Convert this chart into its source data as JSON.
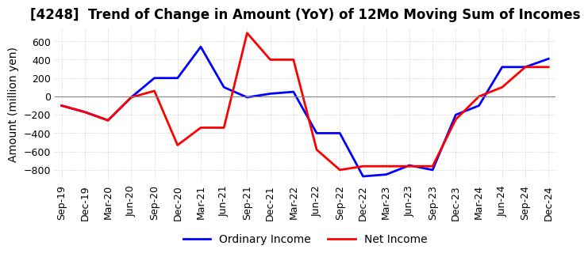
{
  "title": "[4248]  Trend of Change in Amount (YoY) of 12Mo Moving Sum of Incomes",
  "ylabel": "Amount (million yen)",
  "ylim": [
    -920,
    750
  ],
  "yticks": [
    -800,
    -600,
    -400,
    -200,
    0,
    200,
    400,
    600
  ],
  "x_labels": [
    "Sep-19",
    "Dec-19",
    "Mar-20",
    "Jun-20",
    "Sep-20",
    "Dec-20",
    "Mar-21",
    "Jun-21",
    "Sep-21",
    "Dec-21",
    "Mar-22",
    "Jun-22",
    "Sep-22",
    "Dec-22",
    "Mar-23",
    "Jun-23",
    "Sep-23",
    "Dec-23",
    "Mar-24",
    "Jun-24",
    "Sep-24",
    "Dec-24"
  ],
  "ordinary_income": [
    -100,
    -170,
    -260,
    -10,
    200,
    200,
    540,
    100,
    -10,
    30,
    50,
    -400,
    -400,
    -870,
    -850,
    -750,
    -800,
    -200,
    -100,
    320,
    320,
    410
  ],
  "net_income": [
    -100,
    -170,
    -260,
    -10,
    60,
    -530,
    -340,
    -340,
    690,
    400,
    400,
    -580,
    -800,
    -760,
    -760,
    -760,
    -760,
    -250,
    0,
    100,
    320,
    320
  ],
  "ordinary_income_color": "#0000ff",
  "net_income_color": "#ff0000",
  "line_width": 2.0,
  "background_color": "#ffffff",
  "grid_color": "#bbbbbb",
  "title_fontsize": 12,
  "label_fontsize": 10,
  "tick_fontsize": 9
}
